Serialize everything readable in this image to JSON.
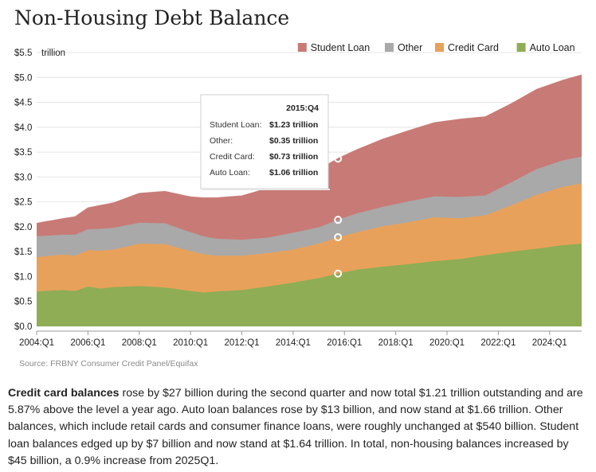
{
  "chart_data": {
    "type": "area",
    "stacked": true,
    "title": "Non-Housing Debt Balance",
    "ylabel": "trillion",
    "ylim": [
      0,
      5.5
    ],
    "yticks": [
      "$0.0",
      "$0.5",
      "$1.0",
      "$1.5",
      "$2.0",
      "$2.5",
      "$3.0",
      "$3.5",
      "$4.0",
      "$4.5",
      "$5.0",
      "$5.5"
    ],
    "xticks": [
      "2004:Q1",
      "2006:Q1",
      "2008:Q1",
      "2010:Q1",
      "2012:Q1",
      "2014:Q1",
      "2016:Q1",
      "2018:Q1",
      "2020:Q1",
      "2022:Q1",
      "2024:Q1"
    ],
    "x_range": [
      "2004:Q1",
      "2025:Q2"
    ],
    "legend_position": "top-right",
    "series": [
      {
        "name": "Auto Loan",
        "color": "#8fad55",
        "points": [
          [
            "2004:Q1",
            0.7
          ],
          [
            "2005:Q1",
            0.73
          ],
          [
            "2005:Q3",
            0.71
          ],
          [
            "2006:Q1",
            0.8
          ],
          [
            "2006:Q3",
            0.76
          ],
          [
            "2007:Q1",
            0.79
          ],
          [
            "2008:Q1",
            0.81
          ],
          [
            "2009:Q1",
            0.78
          ],
          [
            "2010:Q1",
            0.71
          ],
          [
            "2010:Q3",
            0.68
          ],
          [
            "2011:Q1",
            0.7
          ],
          [
            "2012:Q1",
            0.73
          ],
          [
            "2013:Q1",
            0.8
          ],
          [
            "2014:Q1",
            0.88
          ],
          [
            "2015:Q1",
            0.97
          ],
          [
            "2015:Q4",
            1.06
          ],
          [
            "2016:Q3",
            1.14
          ],
          [
            "2017:Q3",
            1.2
          ],
          [
            "2018:Q3",
            1.25
          ],
          [
            "2019:Q3",
            1.31
          ],
          [
            "2020:Q3",
            1.35
          ],
          [
            "2021:Q3",
            1.43
          ],
          [
            "2022:Q3",
            1.5
          ],
          [
            "2023:Q3",
            1.56
          ],
          [
            "2024:Q3",
            1.63
          ],
          [
            "2025:Q2",
            1.66
          ]
        ]
      },
      {
        "name": "Credit Card",
        "color": "#e8a15a",
        "points": [
          [
            "2004:Q1",
            0.69
          ],
          [
            "2005:Q1",
            0.71
          ],
          [
            "2005:Q3",
            0.71
          ],
          [
            "2006:Q1",
            0.73
          ],
          [
            "2006:Q3",
            0.76
          ],
          [
            "2007:Q1",
            0.75
          ],
          [
            "2008:Q1",
            0.85
          ],
          [
            "2009:Q1",
            0.87
          ],
          [
            "2010:Q1",
            0.8
          ],
          [
            "2010:Q3",
            0.77
          ],
          [
            "2011:Q1",
            0.72
          ],
          [
            "2012:Q1",
            0.69
          ],
          [
            "2013:Q1",
            0.67
          ],
          [
            "2014:Q1",
            0.66
          ],
          [
            "2015:Q1",
            0.69
          ],
          [
            "2015:Q4",
            0.73
          ],
          [
            "2016:Q3",
            0.75
          ],
          [
            "2017:Q3",
            0.81
          ],
          [
            "2018:Q3",
            0.84
          ],
          [
            "2019:Q3",
            0.88
          ],
          [
            "2020:Q3",
            0.82
          ],
          [
            "2021:Q3",
            0.8
          ],
          [
            "2022:Q3",
            0.93
          ],
          [
            "2023:Q3",
            1.08
          ],
          [
            "2024:Q3",
            1.17
          ],
          [
            "2025:Q2",
            1.21
          ]
        ]
      },
      {
        "name": "Other",
        "color": "#a9a9a9",
        "points": [
          [
            "2004:Q1",
            0.42
          ],
          [
            "2005:Q1",
            0.4
          ],
          [
            "2005:Q3",
            0.42
          ],
          [
            "2006:Q1",
            0.42
          ],
          [
            "2006:Q3",
            0.44
          ],
          [
            "2007:Q1",
            0.44
          ],
          [
            "2008:Q1",
            0.42
          ],
          [
            "2009:Q1",
            0.42
          ],
          [
            "2010:Q1",
            0.38
          ],
          [
            "2010:Q3",
            0.36
          ],
          [
            "2011:Q1",
            0.34
          ],
          [
            "2012:Q1",
            0.32
          ],
          [
            "2013:Q1",
            0.31
          ],
          [
            "2014:Q1",
            0.34
          ],
          [
            "2015:Q1",
            0.33
          ],
          [
            "2015:Q4",
            0.35
          ],
          [
            "2016:Q3",
            0.38
          ],
          [
            "2017:Q3",
            0.39
          ],
          [
            "2018:Q3",
            0.42
          ],
          [
            "2019:Q3",
            0.42
          ],
          [
            "2020:Q3",
            0.43
          ],
          [
            "2021:Q3",
            0.4
          ],
          [
            "2022:Q3",
            0.46
          ],
          [
            "2023:Q3",
            0.52
          ],
          [
            "2024:Q3",
            0.53
          ],
          [
            "2025:Q2",
            0.54
          ]
        ]
      },
      {
        "name": "Student Loan",
        "color": "#c87a76",
        "points": [
          [
            "2004:Q1",
            0.26
          ],
          [
            "2005:Q1",
            0.32
          ],
          [
            "2005:Q3",
            0.36
          ],
          [
            "2006:Q1",
            0.43
          ],
          [
            "2006:Q3",
            0.47
          ],
          [
            "2007:Q1",
            0.5
          ],
          [
            "2008:Q1",
            0.59
          ],
          [
            "2009:Q1",
            0.64
          ],
          [
            "2010:Q1",
            0.71
          ],
          [
            "2010:Q3",
            0.77
          ],
          [
            "2011:Q1",
            0.82
          ],
          [
            "2012:Q1",
            0.88
          ],
          [
            "2013:Q1",
            0.99
          ],
          [
            "2014:Q1",
            1.11
          ],
          [
            "2015:Q1",
            1.16
          ],
          [
            "2015:Q4",
            1.23
          ],
          [
            "2016:Q3",
            1.28
          ],
          [
            "2017:Q3",
            1.36
          ],
          [
            "2018:Q3",
            1.42
          ],
          [
            "2019:Q3",
            1.48
          ],
          [
            "2020:Q3",
            1.56
          ],
          [
            "2021:Q3",
            1.58
          ],
          [
            "2022:Q3",
            1.58
          ],
          [
            "2023:Q3",
            1.6
          ],
          [
            "2024:Q3",
            1.61
          ],
          [
            "2025:Q2",
            1.64
          ]
        ]
      }
    ],
    "tooltip": {
      "quarter": "2015:Q4",
      "rows": [
        {
          "label": "Student Loan:",
          "value": "$1.23 trillion"
        },
        {
          "label": "Other:",
          "value": "$0.35 trillion"
        },
        {
          "label": "Credit Card:",
          "value": "$0.73 trillion"
        },
        {
          "label": "Auto Loan:",
          "value": "$1.06 trillion"
        }
      ]
    },
    "source": "Source: FRBNY Consumer Credit Panel/Equifax"
  },
  "caption": {
    "lead": "Credit card balances",
    "body": " rose by $27 billion during the second quarter and now total $1.21 trillion outstanding and are 5.87% above the level a year ago. Auto loan balances rose by $13 billion, and now stand at $1.66 trillion. Other balances, which include retail cards and consumer finance loans, were roughly unchanged at $540 billion. Student loan balances edged up by $7 billion and now stand at $1.64 trillion. In total, non-housing balances increased by $45 billion, a 0.9% increase from 2025Q1."
  }
}
